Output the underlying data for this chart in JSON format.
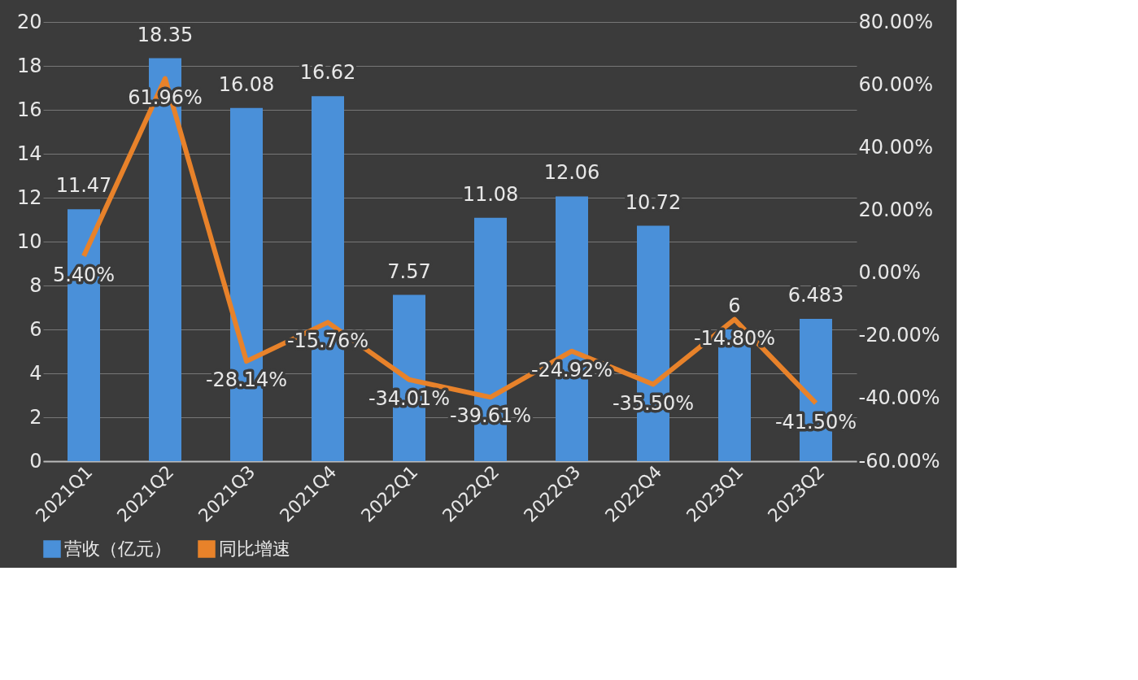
{
  "chart_data": {
    "type": "bar",
    "categories": [
      "2021Q1",
      "2021Q2",
      "2021Q3",
      "2021Q4",
      "2022Q1",
      "2022Q2",
      "2022Q3",
      "2022Q4",
      "2023Q1",
      "2023Q2"
    ],
    "series": [
      {
        "name": "营收（亿元）",
        "color": "#4a90d9",
        "values": [
          11.47,
          18.35,
          16.08,
          16.62,
          7.57,
          11.08,
          12.06,
          10.72,
          6,
          6.483
        ],
        "value_labels": [
          "11.47",
          "18.35",
          "16.08",
          "16.62",
          "7.57",
          "11.08",
          "12.06",
          "10.72",
          "6",
          "6.483"
        ]
      },
      {
        "name": "同比增速",
        "type": "line",
        "axis": "y2",
        "color": "#e8822a",
        "values": [
          5.4,
          61.96,
          -28.14,
          -15.76,
          -34.01,
          -39.61,
          -24.92,
          -35.5,
          -14.8,
          -41.5
        ],
        "value_labels": [
          "5.40%",
          "61.96%",
          "-28.14%",
          "-15.76%",
          "-34.01%",
          "-39.61%",
          "-24.92%",
          "-35.50%",
          "-14.80%",
          "-41.50%"
        ]
      }
    ],
    "ylim": [
      0,
      20
    ],
    "yticks": [
      0,
      2,
      4,
      6,
      8,
      10,
      12,
      14,
      16,
      18,
      20
    ],
    "y2lim": [
      -60,
      80
    ],
    "y2ticks": [
      {
        "value": -60,
        "label": "-60.00%"
      },
      {
        "value": -40,
        "label": "-40.00%"
      },
      {
        "value": -20,
        "label": "-20.00%"
      },
      {
        "value": 0,
        "label": "0.00%"
      },
      {
        "value": 20,
        "label": "20.00%"
      },
      {
        "value": 40,
        "label": "40.00%"
      },
      {
        "value": 60,
        "label": "60.00%"
      },
      {
        "value": 80,
        "label": "80.00%"
      }
    ],
    "grid": "y",
    "legend": "bottom",
    "data_labels": true,
    "marker": "none",
    "line_style": "solid"
  }
}
